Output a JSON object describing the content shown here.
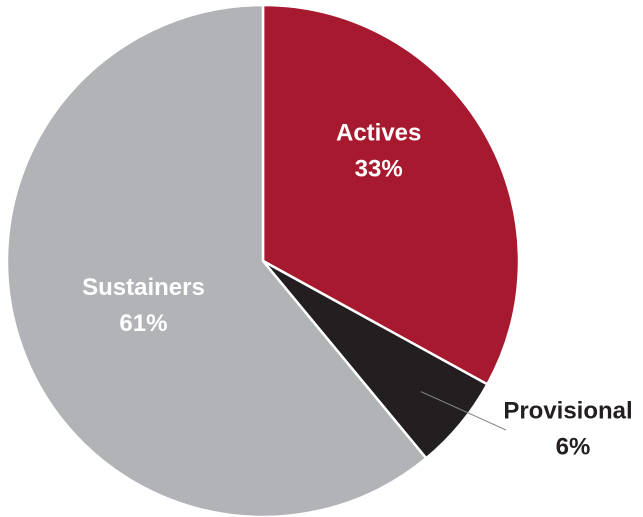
{
  "chart_data": {
    "type": "pie",
    "categories": [
      "Actives",
      "Provisional",
      "Sustainers"
    ],
    "values": [
      33,
      6,
      61
    ],
    "value_labels": [
      "33%",
      "6%",
      "61%"
    ],
    "colors": [
      "#a6192e",
      "#231f20",
      "#b1b3b6"
    ]
  }
}
